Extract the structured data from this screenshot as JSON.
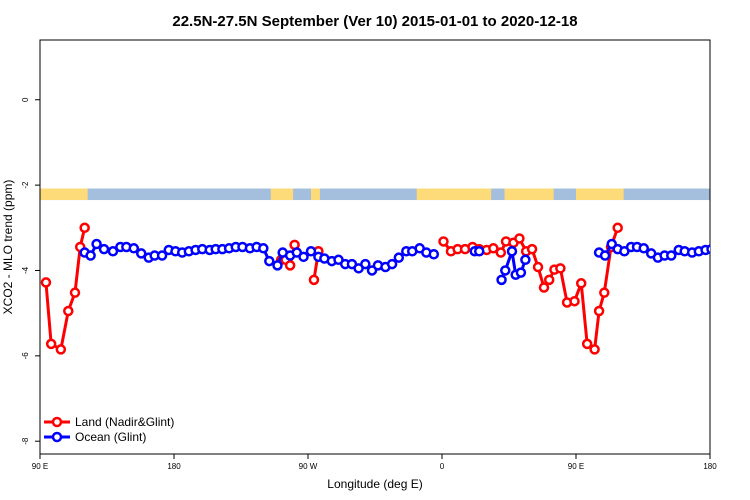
{
  "chart_data": {
    "type": "line",
    "title": "22.5N-27.5N September (Ver 10)   2015-01-01 to 2020-12-18",
    "xlabel": "Longitude (deg E)",
    "ylabel": "XCO2 - MLO trend (ppm)",
    "xlim": [
      90,
      540
    ],
    "ylim": [
      -8.3,
      1.4
    ],
    "x_ticks": [
      {
        "value": 90,
        "label": "90 E"
      },
      {
        "value": 180,
        "label": "180"
      },
      {
        "value": 270,
        "label": "90 W"
      },
      {
        "value": 360,
        "label": "0"
      },
      {
        "value": 450,
        "label": "90 E"
      },
      {
        "value": 540,
        "label": "180"
      }
    ],
    "y_ticks": [
      {
        "value": 0,
        "label": "0"
      },
      {
        "value": -2,
        "label": "-2"
      },
      {
        "value": -4,
        "label": "-4"
      },
      {
        "value": -6,
        "label": "-6"
      },
      {
        "value": -8,
        "label": "-8"
      }
    ],
    "grid": false,
    "legend_position": "bottom-left",
    "land_ocean_strip": {
      "y_range": [
        -2.35,
        -2.08
      ],
      "ocean_color": "#a4bedd",
      "land_color": "#fcdb78",
      "land_intervals": [
        [
          90,
          122
        ],
        [
          245,
          260
        ],
        [
          272,
          278
        ],
        [
          343,
          393
        ],
        [
          402,
          435
        ],
        [
          450,
          482
        ]
      ]
    },
    "series": [
      {
        "name": "Land (Nadir&Glint)",
        "color": "#ff0000",
        "segments": [
          {
            "x": [
              94,
              97.5,
              104,
              109,
              113.5,
              117,
              120
            ],
            "y": [
              -4.28,
              -5.72,
              -5.85,
              -4.95,
              -4.52,
              -3.45,
              -3.0
            ]
          },
          {
            "x": [
              252,
              255,
              258,
              261
            ],
            "y": [
              -3.75,
              -3.75,
              -3.88,
              -3.4
            ]
          },
          {
            "x": [
              274,
              277
            ],
            "y": [
              -4.22,
              -3.55
            ]
          },
          {
            "x": [
              361,
              366,
              370.5,
              375.5,
              380.5,
              385,
              390,
              394.5,
              399.5,
              403,
              408,
              412,
              416.5,
              420.5,
              424.5,
              428.5,
              432,
              435.5,
              439.5,
              444,
              449,
              453.5,
              457.5,
              462.5,
              465.5,
              469,
              473.5,
              478,
              482
            ],
            "y": [
              -3.32,
              -3.55,
              -3.5,
              -3.5,
              -3.45,
              -3.5,
              -3.52,
              -3.48,
              -3.58,
              -3.32,
              -3.35,
              -3.25,
              -3.55,
              -3.5,
              -3.92,
              -4.4,
              -4.22,
              -3.98,
              -3.95,
              -4.75,
              -4.72,
              -4.3,
              -5.72,
              -5.85,
              -4.95,
              -4.52,
              -3.45,
              -3.0,
              null
            ]
          }
        ]
      },
      {
        "name": "Ocean (Glint)",
        "color": "#0000ff",
        "segments": [
          {
            "x": [
              120,
              124,
              128,
              133,
              139,
              144,
              148,
              153,
              158,
              163,
              167,
              172,
              176.5,
              181,
              185.5,
              190,
              194.5,
              199,
              204,
              208,
              212.5,
              217,
              221.5,
              226,
              231,
              235.5,
              240,
              244,
              249.5,
              253,
              258,
              262.5,
              267,
              272,
              277,
              281,
              286,
              290.5,
              295,
              299.5,
              304,
              308.5,
              313,
              317,
              322,
              326.5,
              331,
              336,
              340,
              345,
              349.5,
              354.5
            ],
            "y": [
              -3.58,
              -3.65,
              -3.38,
              -3.5,
              -3.55,
              -3.45,
              -3.45,
              -3.48,
              -3.6,
              -3.7,
              -3.65,
              -3.65,
              -3.52,
              -3.55,
              -3.58,
              -3.55,
              -3.52,
              -3.5,
              -3.52,
              -3.5,
              -3.5,
              -3.48,
              -3.45,
              -3.45,
              -3.48,
              -3.45,
              -3.48,
              -3.78,
              -3.88,
              -3.58,
              -3.65,
              -3.58,
              -3.68,
              -3.55,
              -3.68,
              -3.72,
              -3.78,
              -3.75,
              -3.85,
              -3.85,
              -3.95,
              -3.85,
              -4.0,
              -3.88,
              -3.92,
              -3.85,
              -3.7,
              -3.55,
              -3.55,
              -3.48,
              -3.58,
              -3.62
            ]
          },
          {
            "x": [
              382,
              385
            ],
            "y": [
              -3.55,
              -3.55
            ]
          },
          {
            "x": [
              400,
              402.5,
              407,
              409.5,
              413,
              416
            ],
            "y": [
              -4.22,
              -4.0,
              -3.55,
              -4.1,
              -4.05,
              -3.75
            ]
          },
          {
            "x": [
              465.5,
              469.5,
              474,
              478,
              482.5,
              487,
              491,
              495.5,
              500.5,
              505,
              509.5,
              514,
              519,
              523,
              528,
              532.5,
              537,
              541
            ],
            "y": [
              -3.58,
              -3.65,
              -3.38,
              -3.5,
              -3.55,
              -3.45,
              -3.45,
              -3.48,
              -3.6,
              -3.7,
              -3.65,
              -3.65,
              -3.52,
              -3.55,
              -3.58,
              -3.55,
              -3.52,
              -3.5
            ]
          }
        ]
      }
    ]
  }
}
